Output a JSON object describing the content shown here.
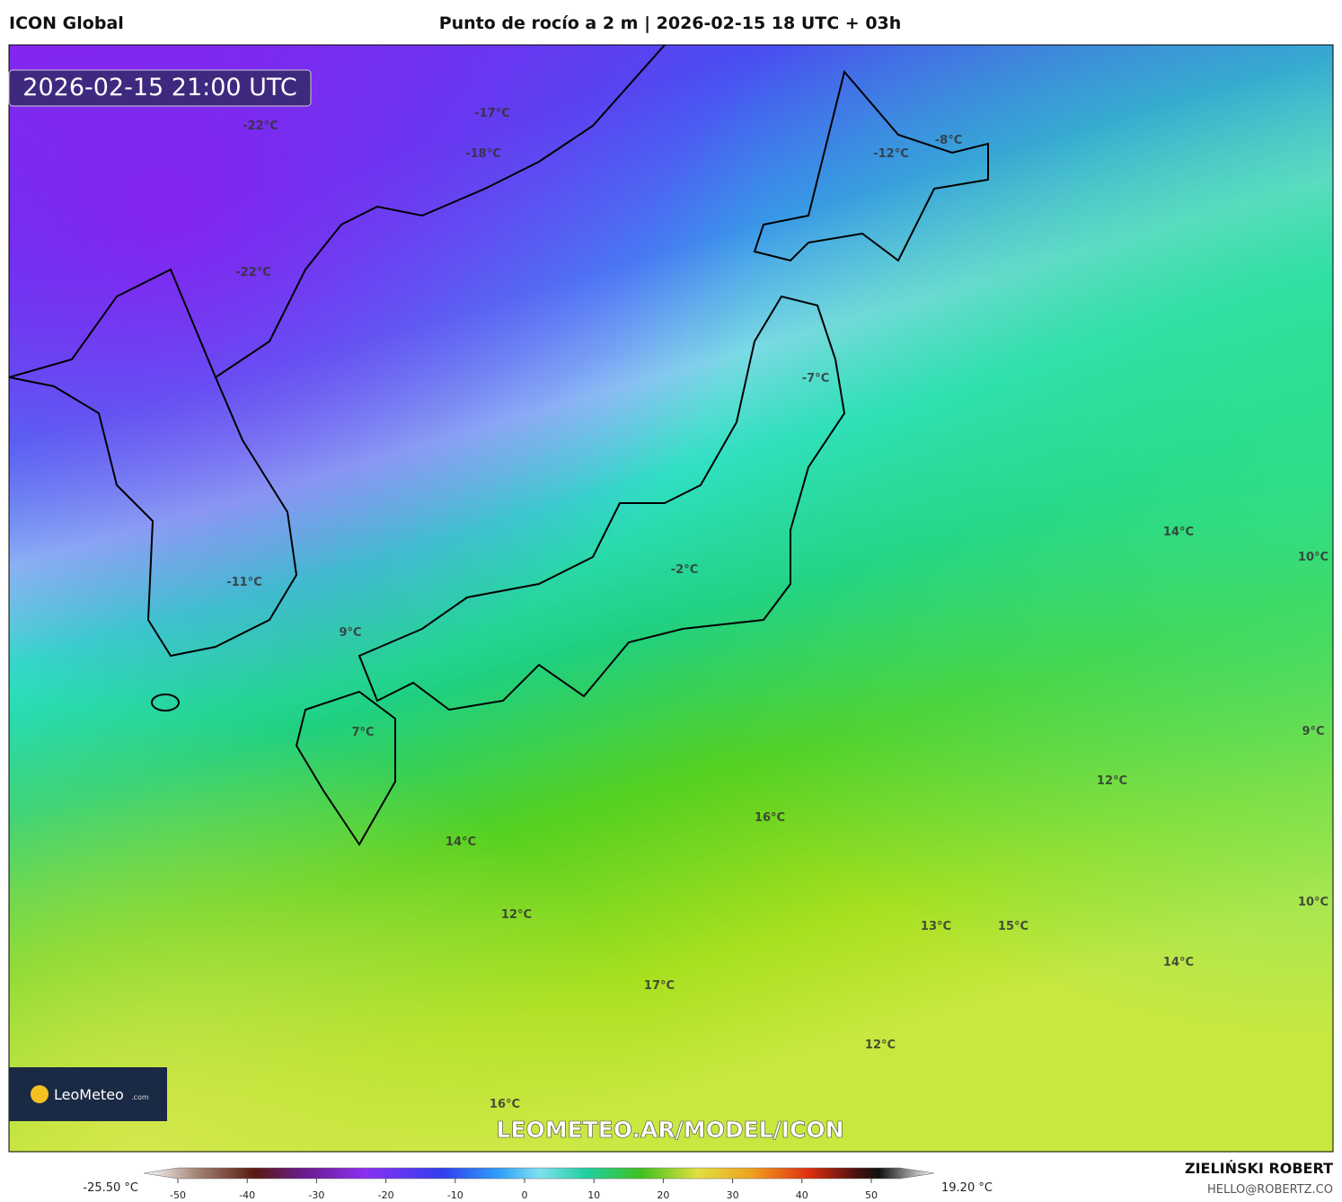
{
  "header": {
    "left": "ICON Global",
    "center": "Punto de rocío a 2 m | 2026-02-15 18 UTC + 03h"
  },
  "map": {
    "timestamp": "2026-02-15 21:00 UTC",
    "labels": [
      "-17°C",
      "-18°C",
      "-22°C",
      "-22°C",
      "-12°C",
      "-8°C",
      "-7°C",
      "-2°C",
      "-11°C",
      "9°C",
      "7°C",
      "14°C",
      "10°C",
      "9°C",
      "12°C",
      "16°C",
      "14°C",
      "12°C",
      "10°C",
      "13°C",
      "15°C",
      "14°C",
      "17°C",
      "12°C",
      "16°C"
    ],
    "logo": "LeoMeteo",
    "logo_suffix": ".com",
    "watermark": "LEOMETEO.AR/MODEL/ICON"
  },
  "colorbar": {
    "min_label": "-25.50 °C",
    "max_label": "19.20 °C",
    "ticks": [
      -50,
      -40,
      -30,
      -20,
      -10,
      0,
      10,
      20,
      30,
      40,
      50
    ]
  },
  "footer": {
    "author": "ZIELIŃSKI ROBERT",
    "email": "HELLO@ROBERTZ.CO"
  }
}
